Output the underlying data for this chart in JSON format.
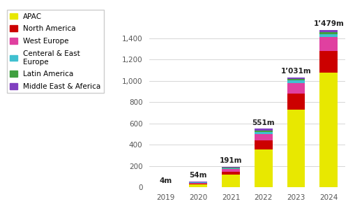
{
  "years": [
    "2019",
    "2020",
    "2021",
    "2022",
    "2023",
    "2024"
  ],
  "totals": [
    "4m",
    "54m",
    "191m",
    "551m",
    "1’031m",
    "1’479m"
  ],
  "regions": [
    "APAC",
    "North America",
    "West Europe",
    "Centeral & East\nEurope",
    "Latin America",
    "Middle East & Aferica"
  ],
  "colors": [
    "#e8e800",
    "#cc0000",
    "#e040a0",
    "#40c0d0",
    "#40a040",
    "#8040c0"
  ],
  "data": {
    "APAC": [
      2,
      28,
      120,
      360,
      730,
      1080
    ],
    "North America": [
      0.5,
      8,
      28,
      80,
      150,
      200
    ],
    "West Europe": [
      0.5,
      8,
      25,
      60,
      100,
      130
    ],
    "Centeral & East\nEurope": [
      0.2,
      4,
      8,
      20,
      25,
      30
    ],
    "Latin America": [
      0.1,
      3,
      5,
      15,
      13,
      20
    ],
    "Middle East & Aferica": [
      0.7,
      3,
      5,
      16,
      13,
      19
    ]
  },
  "total_vals": [
    4,
    54,
    191,
    551,
    1031,
    1479
  ],
  "ylim": [
    0,
    1600
  ],
  "yticks": [
    0,
    200,
    400,
    600,
    800,
    1000,
    1200,
    1400
  ],
  "background_color": "#ffffff",
  "grid_color": "#d0d0d0",
  "legend_fontsize": 7.5,
  "tick_fontsize": 7.5,
  "label_fontsize": 7.5
}
